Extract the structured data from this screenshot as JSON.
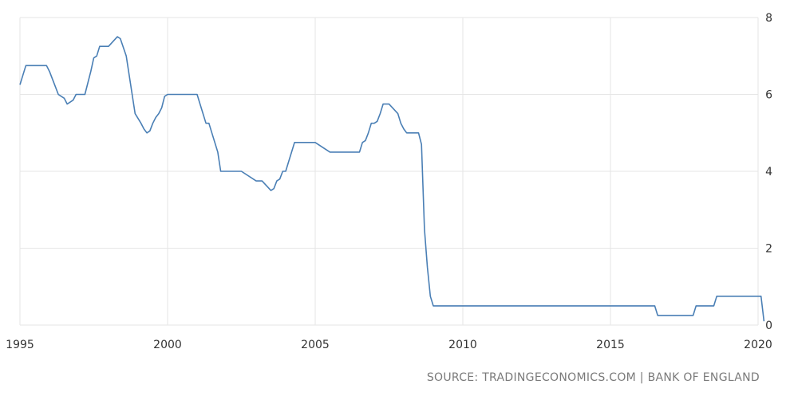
{
  "chart_data": {
    "type": "line",
    "title": "",
    "xlabel": "",
    "ylabel": "",
    "xlim": [
      1995.0,
      2020.2
    ],
    "ylim": [
      0,
      8
    ],
    "y_ticks": [
      "0",
      "2",
      "4",
      "6",
      "8"
    ],
    "x_ticks": [
      "1995",
      "2000",
      "2005",
      "2010",
      "2015",
      "2020"
    ],
    "grid": true,
    "y_axis_side": "right",
    "legend": "none",
    "series": [
      {
        "color": "#4a7fb5",
        "x": [
          1995.0,
          1995.2,
          1995.9,
          1996.0,
          1996.1,
          1996.2,
          1996.3,
          1996.4,
          1996.5,
          1996.6,
          1996.8,
          1996.9,
          1997.2,
          1997.3,
          1997.4,
          1997.5,
          1997.6,
          1997.7,
          1998.0,
          1998.3,
          1998.4,
          1998.6,
          1998.7,
          1998.8,
          1998.9,
          1999.1,
          1999.2,
          1999.3,
          1999.4,
          1999.5,
          1999.6,
          1999.7,
          1999.8,
          1999.9,
          2000.0,
          2000.1,
          2001.0,
          2001.1,
          2001.2,
          2001.3,
          2001.4,
          2001.5,
          2001.7,
          2001.8,
          2001.9,
          2002.0,
          2002.5,
          2003.0,
          2003.1,
          2003.2,
          2003.5,
          2003.6,
          2003.7,
          2003.8,
          2003.9,
          2004.0,
          2004.1,
          2004.2,
          2004.3,
          2004.5,
          2005.0,
          2005.5,
          2005.6,
          2006.0,
          2006.5,
          2006.6,
          2006.7,
          2006.8,
          2006.9,
          2007.0,
          2007.1,
          2007.2,
          2007.3,
          2007.4,
          2007.5,
          2007.8,
          2007.9,
          2008.0,
          2008.1,
          2008.2,
          2008.5,
          2008.6,
          2008.7,
          2008.8,
          2008.9,
          2009.0,
          2009.1,
          2009.2,
          2016.5,
          2016.6,
          2017.8,
          2017.9,
          2018.5,
          2018.6,
          2020.1,
          2020.2
        ],
        "values": [
          6.25,
          6.75,
          6.75,
          6.6,
          6.4,
          6.2,
          6.0,
          5.95,
          5.9,
          5.75,
          5.85,
          6.0,
          6.0,
          6.3,
          6.6,
          6.95,
          7.0,
          7.25,
          7.25,
          7.5,
          7.45,
          7.0,
          6.5,
          6.0,
          5.5,
          5.25,
          5.1,
          5.0,
          5.05,
          5.25,
          5.4,
          5.5,
          5.65,
          5.95,
          6.0,
          6.0,
          6.0,
          5.75,
          5.5,
          5.25,
          5.25,
          5.0,
          4.5,
          4.0,
          4.0,
          4.0,
          4.0,
          3.75,
          3.75,
          3.75,
          3.5,
          3.55,
          3.75,
          3.8,
          4.0,
          4.0,
          4.25,
          4.5,
          4.75,
          4.75,
          4.75,
          4.5,
          4.5,
          4.5,
          4.5,
          4.75,
          4.8,
          5.0,
          5.25,
          5.25,
          5.3,
          5.5,
          5.75,
          5.75,
          5.75,
          5.5,
          5.25,
          5.1,
          5.0,
          5.0,
          5.0,
          4.7,
          2.5,
          1.5,
          0.75,
          0.5,
          0.5,
          0.5,
          0.5,
          0.25,
          0.25,
          0.5,
          0.5,
          0.75,
          0.75,
          0.1
        ]
      }
    ]
  },
  "footer": {
    "source": "SOURCE: TRADINGECONOMICS.COM | BANK OF ENGLAND"
  }
}
